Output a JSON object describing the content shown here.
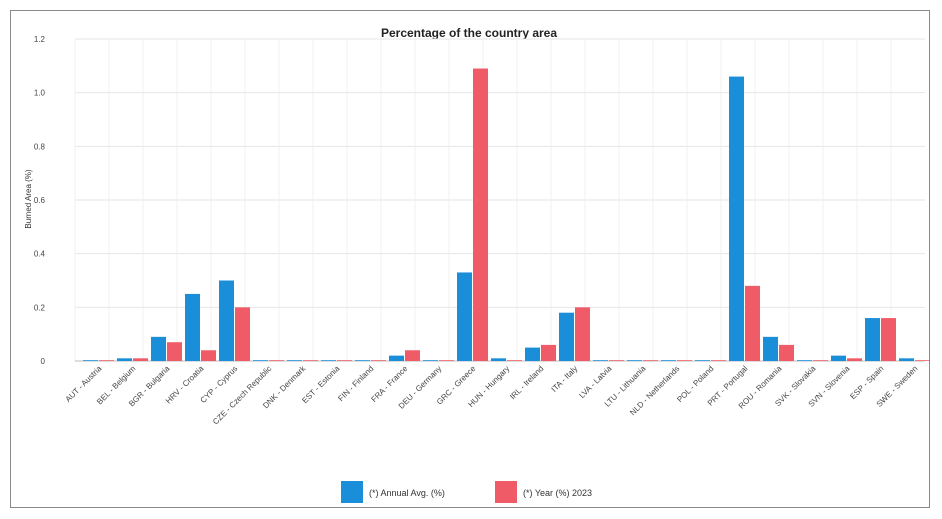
{
  "chart_data": {
    "type": "bar",
    "title": "Percentage of the country area",
    "xlabel": "",
    "ylabel": "Burned Area (%)",
    "ylim": [
      0,
      1.2
    ],
    "yticks": [
      "0",
      "0.2",
      "0.4",
      "0.6",
      "0.8",
      "1.0",
      "1.2"
    ],
    "grid": true,
    "legend_position": "bottom-center",
    "categories": [
      "AUT - Austria",
      "BEL - Belgium",
      "BGR - Bulgaria",
      "HRV - Croatia",
      "CYP - Cyprus",
      "CZE - Czech Republic",
      "DNK - Denmark",
      "EST - Estonia",
      "FIN - Finland",
      "FRA - France",
      "DEU - Germany",
      "GRC - Greece",
      "HUN - Hungary",
      "IRL - Ireland",
      "ITA - Italy",
      "LVA - Latvia",
      "LTU - Lithuania",
      "NLD - Netherlands",
      "POL - Poland",
      "PRT - Portugal",
      "ROU - Romania",
      "SVK - Slovakia",
      "SVN - Slovenia",
      "ESP - Spain",
      "SWE - Sweden"
    ],
    "series": [
      {
        "name": "(*) Annual Avg. (%)",
        "color": "#1a8ed8",
        "values": [
          0.0,
          0.01,
          0.09,
          0.25,
          0.3,
          0.0,
          0.0,
          0.0,
          0.0,
          0.02,
          0.0,
          0.33,
          0.01,
          0.05,
          0.18,
          0.0,
          0.0,
          0.0,
          0.0,
          1.06,
          0.09,
          0.0,
          0.02,
          0.16,
          0.01
        ]
      },
      {
        "name": "(*) Year (%) 2023",
        "color": "#ef5b66",
        "values": [
          0.0,
          0.01,
          0.07,
          0.04,
          0.2,
          0.0,
          0.0,
          0.0,
          0.0,
          0.04,
          0.0,
          1.09,
          0.0,
          0.06,
          0.2,
          0.0,
          0.0,
          0.0,
          0.0,
          0.28,
          0.06,
          0.0,
          0.01,
          0.16,
          0.0
        ]
      }
    ]
  }
}
